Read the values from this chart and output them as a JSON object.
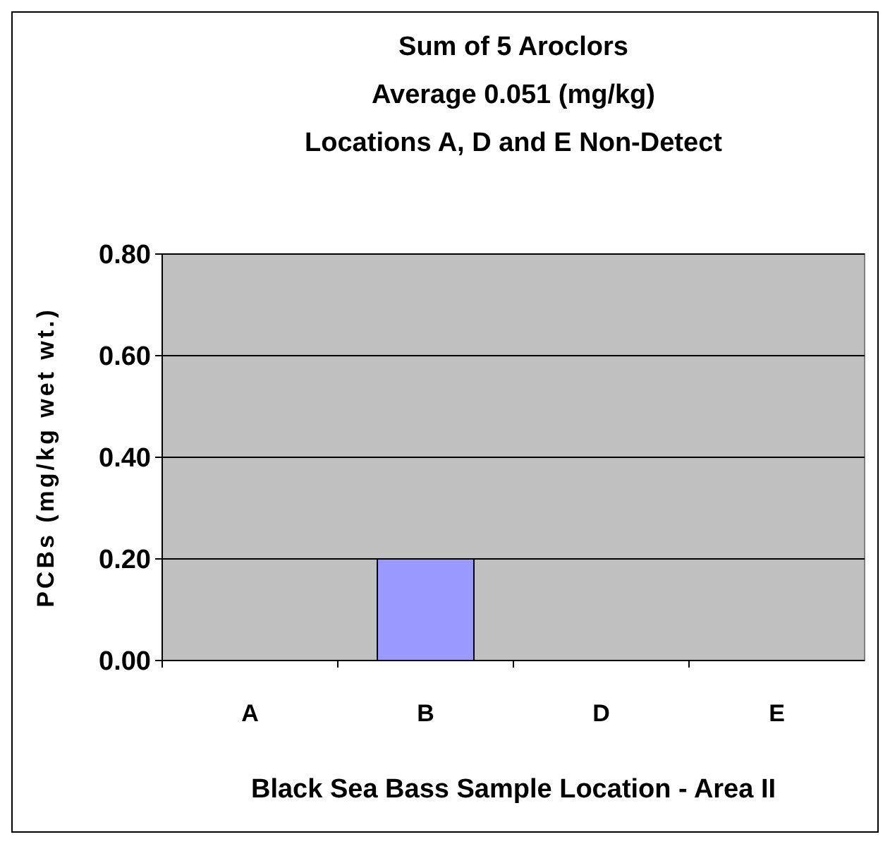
{
  "chart_data": {
    "type": "bar",
    "title": "Sum of 5 Aroclors",
    "subtitle": "Average 0.051 (mg/kg)\nLocations A, D and E Non-Detect",
    "xlabel": "Black Sea Bass Sample Location - Area II",
    "ylabel": "PCBs (mg/kg wet wt.)",
    "categories": [
      "A",
      "B",
      "D",
      "E"
    ],
    "values": [
      null,
      0.2,
      null,
      null
    ],
    "color": "#9999ff",
    "ylim": [
      0,
      0.8
    ],
    "yticks": [
      {
        "value": 0,
        "label": "0.00"
      },
      {
        "value": 0.2,
        "label": "0.20"
      },
      {
        "value": 0.4,
        "label": "0.40"
      },
      {
        "value": 0.6,
        "label": "0.60"
      },
      {
        "value": 0.8,
        "label": "0.80"
      }
    ],
    "grid": "y"
  }
}
